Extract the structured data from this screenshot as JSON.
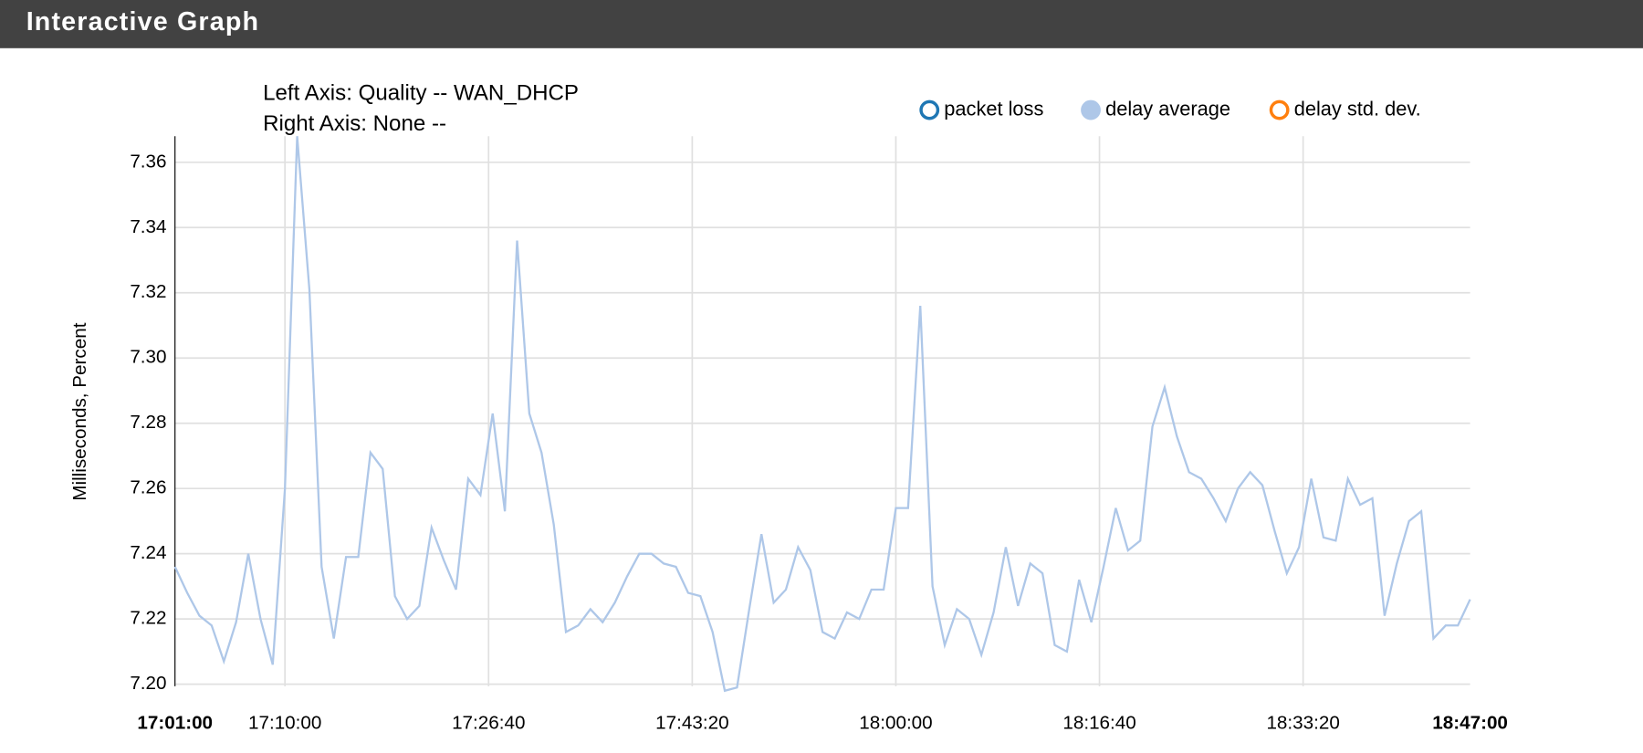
{
  "header": {
    "title": "Interactive Graph"
  },
  "chart_data": {
    "type": "line",
    "title_lines": [
      "Left Axis: Quality -- WAN_DHCP",
      "Right Axis: None --"
    ],
    "y_label": "Milliseconds, Percent",
    "legend": [
      {
        "name": "packet loss",
        "color": "#1f77b4",
        "filled": false
      },
      {
        "name": "delay average",
        "color": "#aec7e8",
        "filled": true
      },
      {
        "name": "delay std. dev.",
        "color": "#ff7f0e",
        "filled": false
      }
    ],
    "legend_position": "top-right",
    "grid": true,
    "xlim": [
      "17:01:00",
      "18:47:00"
    ],
    "xticks": [
      "17:10:00",
      "17:26:40",
      "17:43:20",
      "18:00:00",
      "18:16:40",
      "18:33:20"
    ],
    "ylim": [
      7.2,
      7.368
    ],
    "yticks": [
      {
        "value": 7.2,
        "label": "7.20"
      },
      7.22,
      7.24,
      7.26,
      7.28,
      {
        "value": 7.3,
        "label": "7.30"
      },
      7.32,
      7.34,
      7.36
    ],
    "x": [
      "17:01:00",
      "17:02:00",
      "17:03:00",
      "17:04:00",
      "17:05:00",
      "17:06:00",
      "17:07:00",
      "17:08:00",
      "17:09:00",
      "17:10:00",
      "17:11:00",
      "17:12:00",
      "17:13:00",
      "17:14:00",
      "17:15:00",
      "17:16:00",
      "17:17:00",
      "17:18:00",
      "17:19:00",
      "17:20:00",
      "17:21:00",
      "17:22:00",
      "17:23:00",
      "17:24:00",
      "17:25:00",
      "17:26:00",
      "17:27:00",
      "17:28:00",
      "17:29:00",
      "17:30:00",
      "17:31:00",
      "17:32:00",
      "17:33:00",
      "17:34:00",
      "17:35:00",
      "17:36:00",
      "17:37:00",
      "17:38:00",
      "17:39:00",
      "17:40:00",
      "17:41:00",
      "17:42:00",
      "17:43:00",
      "17:44:00",
      "17:45:00",
      "17:46:00",
      "17:47:00",
      "17:48:00",
      "17:49:00",
      "17:50:00",
      "17:51:00",
      "17:52:00",
      "17:53:00",
      "17:54:00",
      "17:55:00",
      "17:56:00",
      "17:57:00",
      "17:58:00",
      "17:59:00",
      "18:00:00",
      "18:01:00",
      "18:02:00",
      "18:03:00",
      "18:04:00",
      "18:05:00",
      "18:06:00",
      "18:07:00",
      "18:08:00",
      "18:09:00",
      "18:10:00",
      "18:11:00",
      "18:12:00",
      "18:13:00",
      "18:14:00",
      "18:15:00",
      "18:16:00",
      "18:17:00",
      "18:18:00",
      "18:19:00",
      "18:20:00",
      "18:21:00",
      "18:22:00",
      "18:23:00",
      "18:24:00",
      "18:25:00",
      "18:26:00",
      "18:27:00",
      "18:28:00",
      "18:29:00",
      "18:30:00",
      "18:31:00",
      "18:32:00",
      "18:33:00",
      "18:34:00",
      "18:35:00",
      "18:36:00",
      "18:37:00",
      "18:38:00",
      "18:39:00",
      "18:40:00",
      "18:41:00",
      "18:42:00",
      "18:43:00",
      "18:44:00",
      "18:45:00",
      "18:46:00",
      "18:47:00"
    ],
    "series": [
      {
        "name": "delay average",
        "color": "#aec7e8",
        "values": [
          7.236,
          7.228,
          7.221,
          7.218,
          7.207,
          7.219,
          7.24,
          7.22,
          7.206,
          7.26,
          7.368,
          7.321,
          7.236,
          7.214,
          7.239,
          7.239,
          7.271,
          7.266,
          7.227,
          7.22,
          7.224,
          7.248,
          7.238,
          7.229,
          7.263,
          7.258,
          7.283,
          7.253,
          7.336,
          7.283,
          7.271,
          7.249,
          7.216,
          7.218,
          7.223,
          7.219,
          7.225,
          7.233,
          7.24,
          7.24,
          7.237,
          7.236,
          7.228,
          7.227,
          7.216,
          7.198,
          7.199,
          7.223,
          7.246,
          7.225,
          7.229,
          7.242,
          7.235,
          7.216,
          7.214,
          7.222,
          7.22,
          7.229,
          7.229,
          7.254,
          7.254,
          7.316,
          7.23,
          7.212,
          7.223,
          7.22,
          7.209,
          7.222,
          7.242,
          7.224,
          7.237,
          7.234,
          7.212,
          7.21,
          7.232,
          7.219,
          7.236,
          7.254,
          7.241,
          7.244,
          7.279,
          7.291,
          7.276,
          7.265,
          7.263,
          7.257,
          7.25,
          7.26,
          7.265,
          7.261,
          7.247,
          7.234,
          7.242,
          7.263,
          7.245,
          7.244,
          7.263,
          7.255,
          7.257,
          7.221,
          7.237,
          7.25,
          7.253,
          7.214,
          7.218,
          7.218,
          7.226
        ]
      }
    ]
  }
}
